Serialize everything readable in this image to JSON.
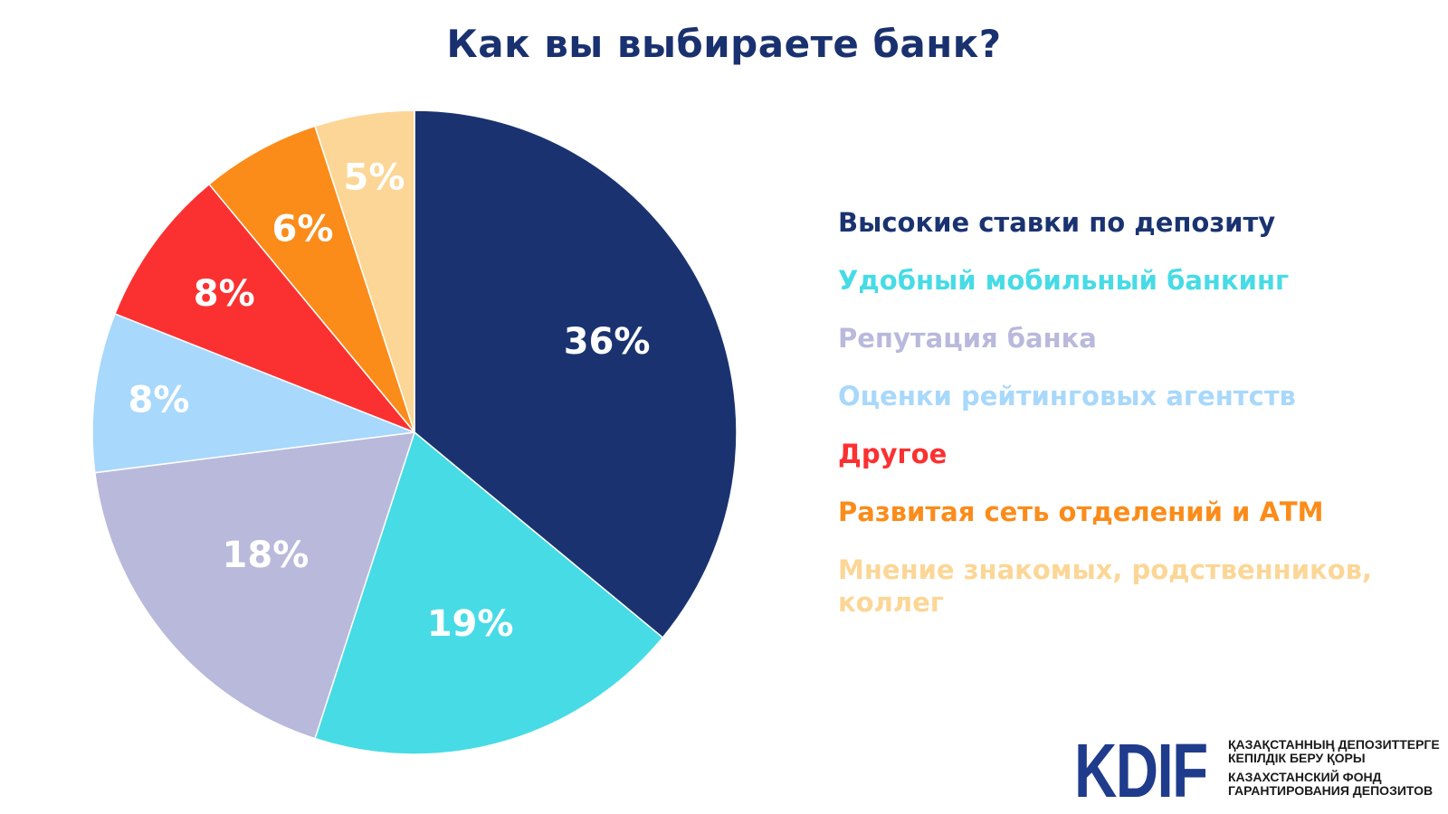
{
  "chart_data": {
    "type": "pie",
    "title": "Как вы выбираете банк?",
    "slices": [
      {
        "label": "Высокие ставки по депозиту",
        "value": 36,
        "display": "36%",
        "color": "#1a3370"
      },
      {
        "label": "Удобный мобильный банкинг",
        "value": 19,
        "display": "19%",
        "color": "#47dbe6"
      },
      {
        "label": "Репутация банка",
        "value": 18,
        "display": "18%",
        "color": "#b9b9dc"
      },
      {
        "label": "Оценки рейтинговых агентств",
        "value": 8,
        "display": "8%",
        "color": "#a8d8fb"
      },
      {
        "label": "Другое",
        "value": 8,
        "display": "8%",
        "color": "#fb3131"
      },
      {
        "label": "Развитая сеть отделений и АТМ",
        "value": 6,
        "display": "6%",
        "color": "#fb8c1a"
      },
      {
        "label": "Мнение знакомых, родственников, коллег",
        "value": 5,
        "display": "5%",
        "color": "#fcd696"
      }
    ],
    "legend_position": "right",
    "label_color": "#ffffff"
  },
  "logo": {
    "mark": "KDIF",
    "kz_line1": "ҚАЗАҚСТАННЫҢ ДЕПОЗИТТЕРГЕ",
    "kz_line2": "КЕПІЛДІК БЕРУ ҚОРЫ",
    "ru_line1": "КАЗАХСТАНСКИЙ ФОНД",
    "ru_line2": "ГАРАНТИРОВАНИЯ ДЕПОЗИТОВ",
    "mark_color": "#1f3b8c"
  }
}
